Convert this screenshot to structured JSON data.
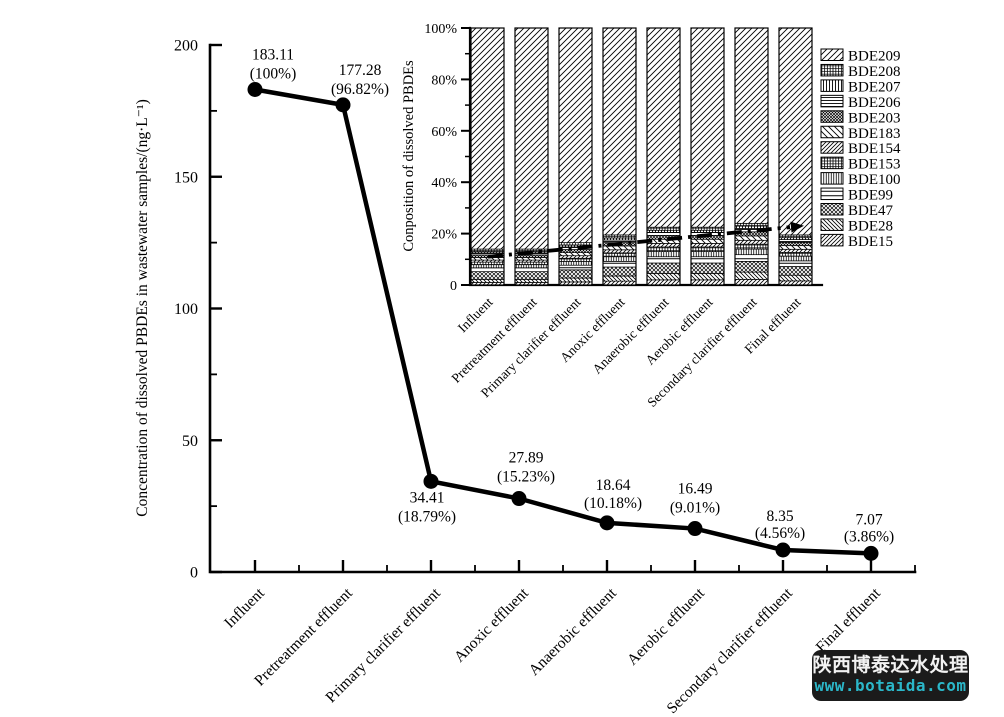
{
  "chart_data": [
    {
      "type": "line",
      "title": "",
      "ylabel": "Concentration of dissolved PBDEs in wastewater samples/(ng·L⁻¹)",
      "xlabel": "",
      "categories": [
        "Influent",
        "Pretreatment effluent",
        "Primary clarifier effluent",
        "Anoxic effluent",
        "Anaerobic effluent",
        "Aerobic effluent",
        "Secondary clarifier effluent",
        "Final effluent"
      ],
      "values": [
        183.11,
        177.28,
        34.41,
        27.89,
        18.64,
        16.49,
        8.35,
        7.07
      ],
      "value_labels": [
        "183.11",
        "177.28",
        "34.41",
        "27.89",
        "18.64",
        "16.49",
        "8.35",
        "7.07"
      ],
      "percent_labels": [
        "(100%)",
        "(96.82%)",
        "(18.79%)",
        "(15.23%)",
        "(10.18%)",
        "(9.01%)",
        "(4.56%)",
        "(3.86%)"
      ],
      "ylim": [
        0,
        200
      ],
      "yticks": [
        0,
        50,
        100,
        150,
        200
      ],
      "yticks_minor": [
        25,
        75,
        125,
        175
      ],
      "line_color": "#000000",
      "marker": "filled-circle",
      "grid": false
    },
    {
      "type": "stacked-bar-percent",
      "title": "",
      "ylabel": "Conposition of dissolved PBDEs",
      "categories": [
        "Influent",
        "Pretreatment effluent",
        "Primary clarifier effluent",
        "Anoxic effluent",
        "Anaerobic effluent",
        "Aerobic effluent",
        "Secondary clarifier effluent",
        "Final effluent"
      ],
      "ytick_labels": [
        "0",
        "20%",
        "40%",
        "60%",
        "80%",
        "100%"
      ],
      "yticks": [
        0,
        20,
        40,
        60,
        80,
        100
      ],
      "yticks_minor": [
        10,
        30,
        50,
        70,
        90
      ],
      "legend_position": "right-outside",
      "legend_top_to_bottom": [
        "BDE209",
        "BDE208",
        "BDE207",
        "BDE206",
        "BDE203",
        "BDE183",
        "BDE154",
        "BDE153",
        "BDE100",
        "BDE99",
        "BDE47",
        "BDE28",
        "BDE15"
      ],
      "series_note": "segment percentages estimated from bar heights; bars sum to 100%",
      "series": [
        {
          "name": "BDE15",
          "hatch": "diag-forward-fine",
          "values": [
            1.0,
            1.0,
            1.2,
            1.5,
            2.0,
            2.0,
            2.2,
            1.6
          ]
        },
        {
          "name": "BDE28",
          "hatch": "diag-back-fine",
          "values": [
            1.2,
            1.2,
            1.5,
            2.0,
            2.5,
            2.5,
            2.8,
            2.2
          ]
        },
        {
          "name": "BDE47",
          "hatch": "diamond",
          "values": [
            3.0,
            3.0,
            3.2,
            3.5,
            4.0,
            4.0,
            4.2,
            3.4
          ]
        },
        {
          "name": "BDE99",
          "hatch": "horizontal-wide",
          "values": [
            1.5,
            1.5,
            1.8,
            2.2,
            2.5,
            2.5,
            2.6,
            2.2
          ]
        },
        {
          "name": "BDE100",
          "hatch": "vertical-dense",
          "values": [
            1.2,
            1.2,
            1.5,
            1.8,
            2.0,
            2.0,
            2.2,
            1.8
          ]
        },
        {
          "name": "BDE153",
          "hatch": "grid-dense",
          "values": [
            1.0,
            1.0,
            1.2,
            1.5,
            1.8,
            1.8,
            1.9,
            1.5
          ]
        },
        {
          "name": "BDE154",
          "hatch": "diag-forward-fine",
          "values": [
            0.8,
            0.8,
            1.0,
            1.2,
            1.4,
            1.4,
            1.5,
            1.2
          ]
        },
        {
          "name": "BDE183",
          "hatch": "diag-back-wide",
          "values": [
            1.0,
            1.0,
            1.2,
            1.5,
            1.6,
            1.6,
            1.7,
            1.4
          ]
        },
        {
          "name": "BDE203",
          "hatch": "diamond-dense",
          "values": [
            1.0,
            1.0,
            1.2,
            1.3,
            1.5,
            1.5,
            1.6,
            1.3
          ]
        },
        {
          "name": "BDE206",
          "hatch": "horizontal",
          "values": [
            0.8,
            0.8,
            1.0,
            1.0,
            1.2,
            1.2,
            1.3,
            1.1
          ]
        },
        {
          "name": "BDE207",
          "hatch": "vertical",
          "values": [
            0.5,
            0.5,
            0.7,
            0.8,
            0.8,
            0.8,
            0.9,
            0.7
          ]
        },
        {
          "name": "BDE208",
          "hatch": "grid-dense",
          "values": [
            1.0,
            1.0,
            1.0,
            1.2,
            1.2,
            1.2,
            1.1,
            1.1
          ]
        },
        {
          "name": "BDE209",
          "hatch": "diag-forward-wide",
          "values": [
            86.0,
            86.0,
            83.5,
            80.5,
            77.5,
            77.5,
            76.0,
            80.5
          ]
        }
      ],
      "trend_arrow": {
        "style": "dash-dot",
        "from_percent": 11,
        "to_percent": 22.5
      },
      "grid": false
    }
  ],
  "colors": {
    "ink": "#000000",
    "background": "#ffffff"
  },
  "watermark": {
    "line1": "陕西博泰达水处理",
    "line2": "www.botaida.com",
    "bg": "#1b1b1b",
    "text_color": "#f2f2f2",
    "url_color": "#2bb7c9"
  }
}
